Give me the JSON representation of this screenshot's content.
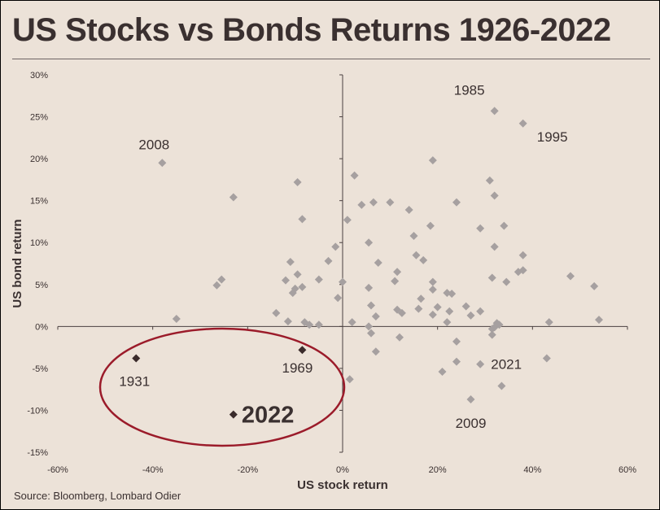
{
  "title": "US Stocks vs Bonds Returns 1926-2022",
  "source": "Source: Bloomberg, Lombard Odier",
  "chart_data": {
    "type": "scatter",
    "xlabel": "US stock return",
    "ylabel": "US bond return",
    "xlim": [
      -60,
      60
    ],
    "ylim": [
      -15,
      30
    ],
    "x_ticks": [
      "-60%",
      "-40%",
      "-20%",
      "0%",
      "20%",
      "40%",
      "60%"
    ],
    "y_ticks": [
      "30%",
      "25%",
      "20%",
      "15%",
      "10%",
      "5%",
      "0%",
      "-5%",
      "-10%",
      "-15%"
    ],
    "grid": false,
    "colors": {
      "points": "#a6a0a0",
      "highlight": "#3a2b2b",
      "ellipse": "#9b1b2a",
      "text": "#3a3030"
    },
    "points": [
      [
        -38,
        19.5
      ],
      [
        -23,
        15.4
      ],
      [
        -25.5,
        5.6
      ],
      [
        -26.5,
        4.9
      ],
      [
        -35,
        0.9
      ],
      [
        -9.5,
        17.2
      ],
      [
        -8.5,
        12.8
      ],
      [
        -11,
        7.7
      ],
      [
        -9.5,
        6.2
      ],
      [
        -12,
        5.5
      ],
      [
        -10,
        4.5
      ],
      [
        -10.5,
        4
      ],
      [
        -8.5,
        4.7
      ],
      [
        -14,
        1.6
      ],
      [
        -8,
        0.5
      ],
      [
        -7,
        0.2
      ],
      [
        -11.5,
        0.6
      ],
      [
        -5,
        0.2
      ],
      [
        -5,
        5.6
      ],
      [
        -3,
        7.8
      ],
      [
        -1.5,
        9.5
      ],
      [
        1,
        12.7
      ],
      [
        0,
        5.3
      ],
      [
        -1,
        3.4
      ],
      [
        2,
        0.5
      ],
      [
        2.5,
        18
      ],
      [
        4,
        14.5
      ],
      [
        6.5,
        14.8
      ],
      [
        5.5,
        10
      ],
      [
        7.5,
        7.6
      ],
      [
        5.5,
        4.6
      ],
      [
        6,
        2.5
      ],
      [
        7,
        1.2
      ],
      [
        5.5,
        0
      ],
      [
        6,
        -0.8
      ],
      [
        7,
        -3
      ],
      [
        10,
        14.8
      ],
      [
        14,
        13.9
      ],
      [
        15,
        10.8
      ],
      [
        11,
        5.4
      ],
      [
        11.5,
        6.5
      ],
      [
        11.5,
        2
      ],
      [
        12.5,
        1.6
      ],
      [
        12,
        -1.3
      ],
      [
        15.5,
        8.5
      ],
      [
        17,
        7.9
      ],
      [
        16.5,
        3.3
      ],
      [
        16,
        2.1
      ],
      [
        18.5,
        12
      ],
      [
        19,
        19.8
      ],
      [
        19,
        5.3
      ],
      [
        19,
        4.4
      ],
      [
        20,
        2.3
      ],
      [
        19,
        1.4
      ],
      [
        22,
        4
      ],
      [
        22.5,
        1.8
      ],
      [
        22,
        0.5
      ],
      [
        23,
        3.9
      ],
      [
        24,
        14.8
      ],
      [
        24,
        -1.8
      ],
      [
        24,
        -4.2
      ],
      [
        26,
        2.4
      ],
      [
        27,
        1.3
      ],
      [
        29,
        1.8
      ],
      [
        29,
        11.7
      ],
      [
        31,
        17.4
      ],
      [
        32,
        15.6
      ],
      [
        32,
        9.5
      ],
      [
        31.5,
        5.8
      ],
      [
        32.5,
        0.4
      ],
      [
        31.5,
        -1
      ],
      [
        32,
        -0.1
      ],
      [
        34,
        12
      ],
      [
        34.5,
        5.3
      ],
      [
        37,
        6.5
      ],
      [
        38,
        6.7
      ],
      [
        38,
        8.5
      ],
      [
        43.5,
        0.5
      ],
      [
        43,
        -3.8
      ],
      [
        48,
        6
      ],
      [
        53,
        4.8
      ],
      [
        54,
        0.8
      ],
      [
        33.5,
        -7.1
      ],
      [
        21,
        -5.4
      ],
      [
        27,
        -8.7
      ],
      [
        29,
        -4.5
      ],
      [
        31.5,
        -0.3
      ],
      [
        33,
        0.2
      ],
      [
        1.5,
        -6.3
      ],
      [
        32,
        25.7
      ],
      [
        38,
        24.2
      ]
    ],
    "highlighted_points": [
      [
        -43.5,
        -3.8
      ],
      [
        -8.5,
        -2.8
      ],
      [
        -23,
        -10.5
      ]
    ],
    "annotations": [
      {
        "label": "2008",
        "x": -38,
        "y": 19.5
      },
      {
        "label": "1985",
        "x": 32,
        "y": 25.7
      },
      {
        "label": "1995",
        "x": 38,
        "y": 24.2
      },
      {
        "label": "1931",
        "x": -43.5,
        "y": -3.8
      },
      {
        "label": "1969",
        "x": -8.5,
        "y": -2.8
      },
      {
        "label": "2022",
        "x": -23,
        "y": -10.5
      },
      {
        "label": "2021",
        "x": 29,
        "y": -4.5
      },
      {
        "label": "2009",
        "x": 27,
        "y": -8.7
      }
    ]
  }
}
